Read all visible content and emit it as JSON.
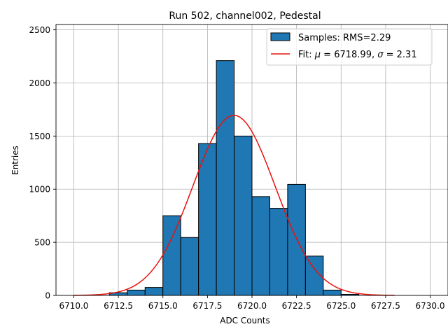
{
  "chart_data": {
    "type": "histogram",
    "title": "Run 502, channel002, Pedestal",
    "xlabel": "ADC Counts",
    "ylabel": "Entries",
    "xlim": [
      6709.0,
      6731.0
    ],
    "ylim": [
      0,
      2550
    ],
    "xticks": [
      6710.0,
      6712.5,
      6715.0,
      6717.5,
      6720.0,
      6722.5,
      6725.0,
      6727.5,
      6730.0
    ],
    "xtick_labels": [
      "6710.0",
      "6712.5",
      "6715.0",
      "6717.5",
      "6720.0",
      "6722.5",
      "6725.0",
      "6727.5",
      "6730.0"
    ],
    "yticks": [
      0,
      500,
      1000,
      1500,
      2000,
      2500
    ],
    "ytick_labels": [
      "0",
      "500",
      "1000",
      "1500",
      "2000",
      "2500"
    ],
    "grid": true,
    "legend_position": "top-right",
    "bins": [
      {
        "x0": 6712,
        "x1": 6713,
        "value": 25
      },
      {
        "x0": 6713,
        "x1": 6714,
        "value": 50
      },
      {
        "x0": 6714,
        "x1": 6715,
        "value": 75
      },
      {
        "x0": 6715,
        "x1": 6716,
        "value": 750
      },
      {
        "x0": 6716,
        "x1": 6717,
        "value": 545
      },
      {
        "x0": 6717,
        "x1": 6718,
        "value": 1430
      },
      {
        "x0": 6718,
        "x1": 6719,
        "value": 2210
      },
      {
        "x0": 6719,
        "x1": 6720,
        "value": 1500
      },
      {
        "x0": 6720,
        "x1": 6721,
        "value": 930
      },
      {
        "x0": 6721,
        "x1": 6722,
        "value": 820
      },
      {
        "x0": 6722,
        "x1": 6723,
        "value": 1045
      },
      {
        "x0": 6723,
        "x1": 6724,
        "value": 370
      },
      {
        "x0": 6724,
        "x1": 6725,
        "value": 50
      },
      {
        "x0": 6725,
        "x1": 6726,
        "value": 10
      }
    ],
    "fit": {
      "mu": 6718.99,
      "sigma": 2.31,
      "amplitude": 1695,
      "x_range": [
        6710,
        6728
      ]
    },
    "legend": {
      "hist_label": "Samples: RMS=2.29",
      "fit_label_prefix": "Fit: ",
      "mu_symbol": "μ",
      "mu_text": " = 6718.99, ",
      "sigma_symbol": "σ",
      "sigma_text": " = 2.31"
    },
    "colors": {
      "bar": "#1f77b4",
      "bar_edge": "#000000",
      "fit": "#e8120c",
      "grid": "#b0b0b0"
    }
  }
}
